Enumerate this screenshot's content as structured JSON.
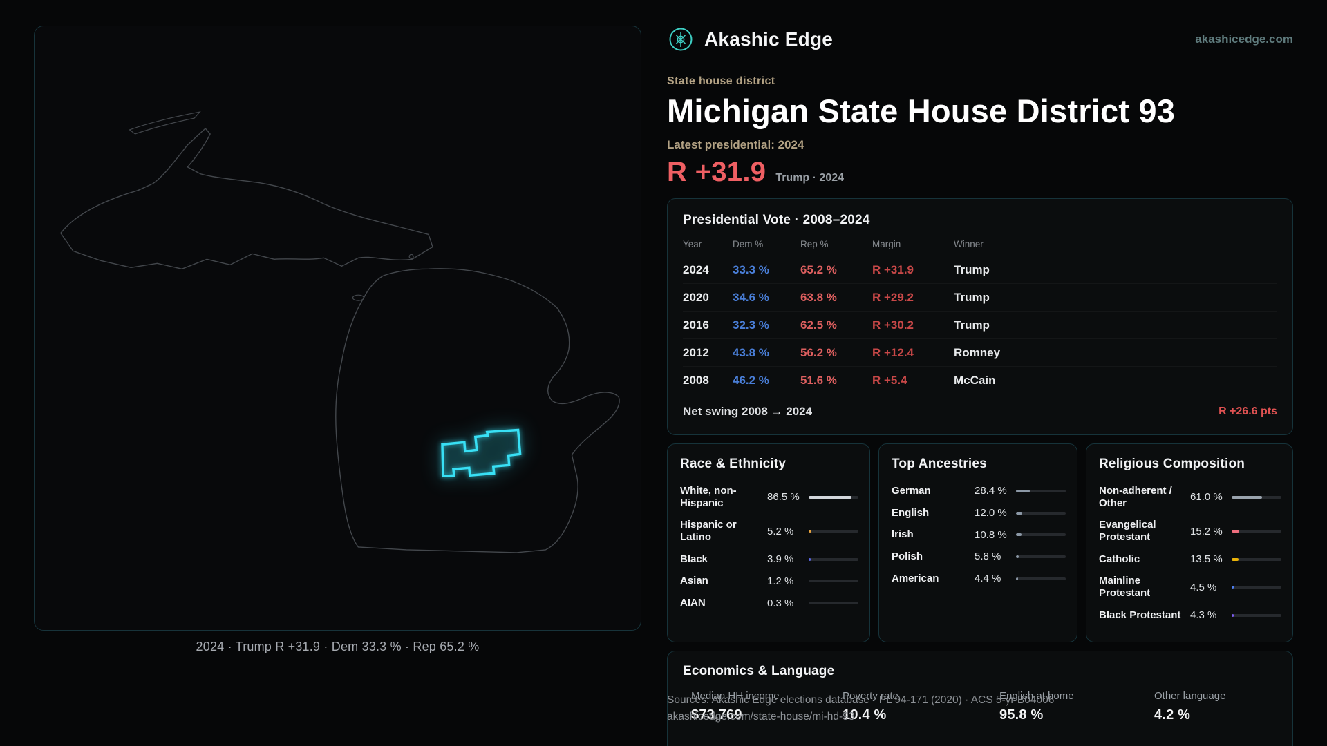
{
  "header": {
    "brand": "Akashic Edge",
    "site": "akashicedge.com"
  },
  "hero": {
    "kicker": "State house district",
    "title": "Michigan State House District 93",
    "subtitle": "Latest presidential: 2024",
    "margin": "R +31.9",
    "margin_context": "Trump · 2024"
  },
  "map": {
    "caption": "2024 · Trump R +31.9 · Dem 33.3 % · Rep 65.2 %"
  },
  "presidential": {
    "title": "Presidential Vote · 2008–2024",
    "columns": [
      "Year",
      "Dem %",
      "Rep %",
      "Margin",
      "Winner"
    ],
    "rows": [
      {
        "year": "2024",
        "dem": "33.3 %",
        "rep": "65.2 %",
        "margin": "R +31.9",
        "winner": "Trump"
      },
      {
        "year": "2020",
        "dem": "34.6 %",
        "rep": "63.8 %",
        "margin": "R +29.2",
        "winner": "Trump"
      },
      {
        "year": "2016",
        "dem": "32.3 %",
        "rep": "62.5 %",
        "margin": "R +30.2",
        "winner": "Trump"
      },
      {
        "year": "2012",
        "dem": "43.8 %",
        "rep": "56.2 %",
        "margin": "R +12.4",
        "winner": "Romney"
      },
      {
        "year": "2008",
        "dem": "46.2 %",
        "rep": "51.6 %",
        "margin": "R +5.4",
        "winner": "McCain"
      }
    ],
    "net_swing_label": "Net swing 2008 → 2024",
    "net_swing_value": "R +26.6 pts"
  },
  "demographics": {
    "race": {
      "title": "Race & Ethnicity",
      "rows": [
        {
          "label": "White, non-Hispanic",
          "value": "86.5 %",
          "pct": 86.5,
          "color": "#d3d7dc"
        },
        {
          "label": "Hispanic or Latino",
          "value": "5.2 %",
          "pct": 5.2,
          "color": "#e8a33d"
        },
        {
          "label": "Black",
          "value": "3.9 %",
          "pct": 3.9,
          "color": "#5b67e8"
        },
        {
          "label": "Asian",
          "value": "1.2 %",
          "pct": 1.2,
          "color": "#3ecf8e"
        },
        {
          "label": "AIAN",
          "value": "0.3 %",
          "pct": 0.3,
          "color": "#e8703d"
        }
      ]
    },
    "ancestries": {
      "title": "Top Ancestries",
      "rows": [
        {
          "label": "German",
          "value": "28.4 %",
          "pct": 28.4,
          "color": "#8b97a5"
        },
        {
          "label": "English",
          "value": "12.0 %",
          "pct": 12.0,
          "color": "#8b97a5"
        },
        {
          "label": "Irish",
          "value": "10.8 %",
          "pct": 10.8,
          "color": "#8b97a5"
        },
        {
          "label": "Polish",
          "value": "5.8 %",
          "pct": 5.8,
          "color": "#8b97a5"
        },
        {
          "label": "American",
          "value": "4.4 %",
          "pct": 4.4,
          "color": "#8b97a5"
        }
      ]
    },
    "religion": {
      "title": "Religious Composition",
      "rows": [
        {
          "label": "Non-adherent / Other",
          "value": "61.0 %",
          "pct": 61.0,
          "color": "#9aa3ad"
        },
        {
          "label": "Evangelical Protestant",
          "value": "15.2 %",
          "pct": 15.2,
          "color": "#ef6e7e"
        },
        {
          "label": "Catholic",
          "value": "13.5 %",
          "pct": 13.5,
          "color": "#eab308"
        },
        {
          "label": "Mainline Protestant",
          "value": "4.5 %",
          "pct": 4.5,
          "color": "#4f7ff0"
        },
        {
          "label": "Black Protestant",
          "value": "4.3 %",
          "pct": 4.3,
          "color": "#7c5cf0"
        }
      ]
    }
  },
  "economics": {
    "title": "Economics & Language",
    "stats": [
      {
        "label": "Median HH income",
        "value": "$73,769"
      },
      {
        "label": "Poverty rate",
        "value": "10.4 %"
      },
      {
        "label": "English at home",
        "value": "95.8 %"
      },
      {
        "label": "Other language",
        "value": "4.2 %"
      }
    ]
  },
  "footer": {
    "sources": "Sources: Akashic Edge elections database · PL 94-171 (2020) · ACS 5-yr B04006",
    "permalink": "akashicedge.com/state-house/mi-hd-93"
  },
  "colors": {
    "accent_teal": "#3ecfc4",
    "district_cyan": "#38e0f5",
    "dem_blue": "#4a7fd9",
    "rep_red": "#dd5f5f",
    "headline_red": "#ef5f63",
    "gold": "#b3a284"
  }
}
